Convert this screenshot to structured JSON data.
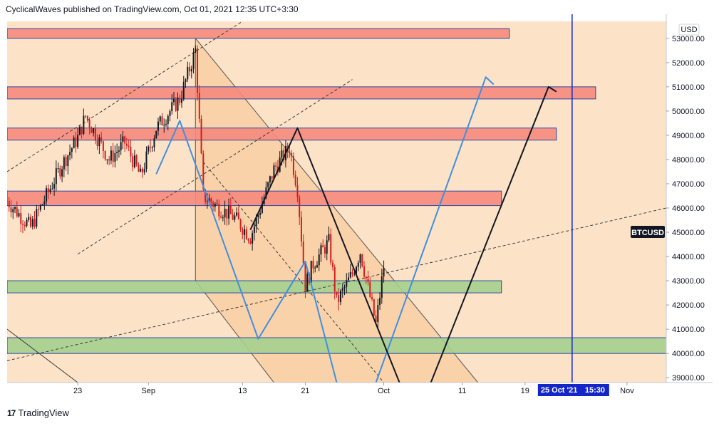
{
  "header": {
    "publish_line": "CyclicalWaves published on TradingView.com, Oct 01, 2021 12:35 UTC+3:30"
  },
  "footer": {
    "brand": "TradingView",
    "logo_glyph": "17"
  },
  "colors": {
    "background": "#fce3c8",
    "candle_up": "#131722",
    "candle_down": "#d01f1f",
    "resistance_fill": "#f5897c",
    "support_fill": "#a5cf8e",
    "zone_border": "#2a4aa8",
    "blue_arrow": "#3f8fe0",
    "marker_line": "#1426c8",
    "price_badge": "#131722",
    "date_badge": "#1426c8"
  },
  "chart_data": {
    "type": "candlestick",
    "symbol": "BTCUSD",
    "currency": "USD",
    "current_price": 45000,
    "ylim": [
      38800,
      53700
    ],
    "y_ticks": [
      39000,
      40000,
      41000,
      42000,
      43000,
      44000,
      45000,
      46000,
      47000,
      48000,
      49000,
      50000,
      51000,
      52000,
      53000
    ],
    "y_tick_labels": [
      "39000.00",
      "40000.00",
      "41000.00",
      "42000.00",
      "43000.00",
      "44000.00",
      "45000.00",
      "46000.00",
      "47000.00",
      "48000.00",
      "49000.00",
      "50000.00",
      "51000.00",
      "52000.00",
      "53000.00"
    ],
    "x_range": [
      "2021-08-14",
      "2021-11-06"
    ],
    "x_ticks": [
      {
        "date": "2021-08-23",
        "label": "23"
      },
      {
        "date": "2021-09-01",
        "label": "Sep"
      },
      {
        "date": "2021-09-13",
        "label": "13"
      },
      {
        "date": "2021-09-21",
        "label": "21"
      },
      {
        "date": "2021-10-01",
        "label": "Oct"
      },
      {
        "date": "2021-10-11",
        "label": "11"
      },
      {
        "date": "2021-10-19",
        "label": "19"
      },
      {
        "date": "2021-11-01",
        "label": "Nov"
      }
    ],
    "marker": {
      "date": "2021-10-25",
      "label_date": "25 Oct '21",
      "label_time": "15:30"
    },
    "zones": [
      {
        "kind": "resistance",
        "from": "2021-08-14",
        "to": "2021-10-17",
        "low": 53000,
        "high": 53400
      },
      {
        "kind": "resistance",
        "from": "2021-08-14",
        "to": "2021-10-28",
        "low": 50500,
        "high": 51000
      },
      {
        "kind": "resistance",
        "from": "2021-08-14",
        "to": "2021-10-23",
        "low": 48800,
        "high": 49300
      },
      {
        "kind": "resistance",
        "from": "2021-08-14",
        "to": "2021-10-16",
        "low": 46100,
        "high": 46700
      },
      {
        "kind": "support",
        "from": "2021-08-14",
        "to": "2021-10-16",
        "low": 42500,
        "high": 43000
      },
      {
        "kind": "support",
        "from": "2021-08-14",
        "to": "2021-11-06",
        "low": 40000,
        "high": 40650
      }
    ],
    "price_path": [
      {
        "date": "2021-08-14",
        "price": 46300
      },
      {
        "date": "2021-08-17",
        "price": 45200
      },
      {
        "date": "2021-08-21",
        "price": 47800
      },
      {
        "date": "2021-08-23",
        "price": 48900
      },
      {
        "date": "2021-08-24",
        "price": 49800
      },
      {
        "date": "2021-08-25",
        "price": 49200
      },
      {
        "date": "2021-08-27",
        "price": 48000
      },
      {
        "date": "2021-08-29",
        "price": 48700
      },
      {
        "date": "2021-08-31",
        "price": 47300
      },
      {
        "date": "2021-09-02",
        "price": 49300
      },
      {
        "date": "2021-09-05",
        "price": 50500
      },
      {
        "date": "2021-09-07",
        "price": 52500
      },
      {
        "date": "2021-09-08",
        "price": 46500
      },
      {
        "date": "2021-09-10",
        "price": 46000
      },
      {
        "date": "2021-09-12",
        "price": 45600
      },
      {
        "date": "2021-09-14",
        "price": 44800
      },
      {
        "date": "2021-09-17",
        "price": 47600
      },
      {
        "date": "2021-09-19",
        "price": 48500
      },
      {
        "date": "2021-09-20",
        "price": 46800
      },
      {
        "date": "2021-09-21",
        "price": 42800
      },
      {
        "date": "2021-09-22",
        "price": 43700
      },
      {
        "date": "2021-09-24",
        "price": 44600
      },
      {
        "date": "2021-09-25",
        "price": 42100
      },
      {
        "date": "2021-09-27",
        "price": 43300
      },
      {
        "date": "2021-09-28",
        "price": 44200
      },
      {
        "date": "2021-09-30",
        "price": 41200
      },
      {
        "date": "2021-10-01",
        "price": 43600
      },
      {
        "date": "2021-10-01",
        "price": 45000
      }
    ],
    "trendlines": [
      {
        "style": "dashed",
        "color": "#3a3a3a",
        "from": {
          "date": "2021-08-14",
          "price": 47500
        },
        "to": {
          "date": "2021-09-13",
          "price": 53700
        }
      },
      {
        "style": "dashed",
        "color": "#3a3a3a",
        "from": {
          "date": "2021-08-14",
          "price": 39700
        },
        "to": {
          "date": "2021-11-06",
          "price": 46000
        }
      },
      {
        "style": "dashed",
        "color": "#3a3a3a",
        "from": {
          "date": "2021-08-23",
          "price": 44100
        },
        "to": {
          "date": "2021-09-27",
          "price": 51300
        }
      },
      {
        "style": "dashed",
        "color": "#3a3a3a",
        "from": {
          "date": "2021-09-08",
          "price": 47900
        },
        "to": {
          "date": "2021-10-01",
          "price": 38800
        }
      },
      {
        "style": "solid",
        "color": "#3a3a3a",
        "from": {
          "date": "2021-08-14",
          "price": 41000
        },
        "to": {
          "date": "2021-08-23",
          "price": 38800
        }
      }
    ],
    "channel": {
      "color": "#555555",
      "fill": "#f7c58f",
      "upper": [
        {
          "date": "2021-09-07",
          "price": 53000
        },
        {
          "date": "2021-10-13",
          "price": 38800
        }
      ],
      "lower": [
        {
          "date": "2021-09-07",
          "price": 43000
        },
        {
          "date": "2021-09-17",
          "price": 38800
        }
      ]
    },
    "projections": [
      {
        "color": "#3f8fe0",
        "points": [
          {
            "date": "2021-09-02",
            "price": 47400
          },
          {
            "date": "2021-09-05",
            "price": 49600
          },
          {
            "date": "2021-09-15",
            "price": 40600
          },
          {
            "date": "2021-09-21",
            "price": 43800
          },
          {
            "date": "2021-09-25",
            "price": 38800
          }
        ]
      },
      {
        "color": "#3f8fe0",
        "points": [
          {
            "date": "2021-09-30",
            "price": 38800
          },
          {
            "date": "2021-10-14",
            "price": 51400
          },
          {
            "date": "2021-10-15",
            "price": 51100
          }
        ]
      },
      {
        "color": "#131722",
        "points": [
          {
            "date": "2021-09-14",
            "price": 45100
          },
          {
            "date": "2021-09-20",
            "price": 49300
          },
          {
            "date": "2021-10-03",
            "price": 38800
          }
        ]
      },
      {
        "color": "#131722",
        "points": [
          {
            "date": "2021-10-07",
            "price": 38800
          },
          {
            "date": "2021-10-22",
            "price": 51000
          },
          {
            "date": "2021-10-23",
            "price": 50800
          }
        ]
      }
    ]
  }
}
